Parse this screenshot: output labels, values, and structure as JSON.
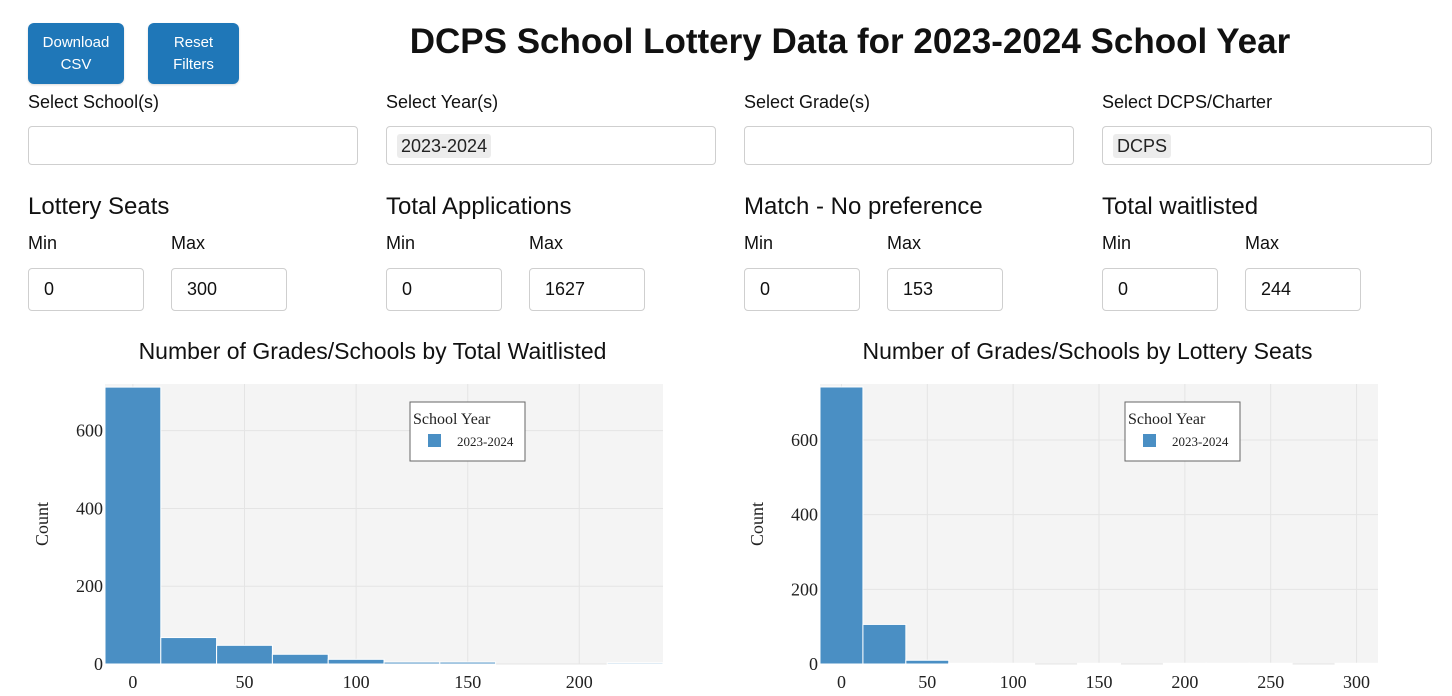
{
  "buttons": {
    "download": "Download\nCSV",
    "reset": "Reset\nFilters"
  },
  "title": "DCPS School Lottery Data for 2023-2024 School Year",
  "filters": [
    {
      "label": "Select School(s)",
      "selected": ""
    },
    {
      "label": "Select Year(s)",
      "selected": "2023-2024"
    },
    {
      "label": "Select Grade(s)",
      "selected": ""
    },
    {
      "label": "Select DCPS/Charter",
      "selected": "DCPS"
    }
  ],
  "ranges": [
    {
      "label": "Lottery Seats",
      "min_label": "Min",
      "max_label": "Max",
      "min": "0",
      "max": "300"
    },
    {
      "label": "Total Applications",
      "min_label": "Min",
      "max_label": "Max",
      "min": "0",
      "max": "1627"
    },
    {
      "label": "Match - No preference",
      "min_label": "Min",
      "max_label": "Max",
      "min": "0",
      "max": "153"
    },
    {
      "label": "Total waitlisted",
      "min_label": "Min",
      "max_label": "Max",
      "min": "0",
      "max": "244"
    }
  ],
  "colors": {
    "bar": "#4a8fc4",
    "plot_bg": "#f4f4f4",
    "grid": "#e4e4e4",
    "button": "#1f77b8"
  },
  "chart_data": [
    {
      "type": "bar",
      "title": "Number of Grades/Schools by Total Waitlisted",
      "xlabel": "",
      "ylabel": "Count",
      "xlim": [
        -12.5,
        237.5
      ],
      "ylim": [
        0,
        720
      ],
      "xticks": [
        0,
        50,
        100,
        150,
        200
      ],
      "yticks": [
        0,
        200,
        400,
        600
      ],
      "legend": {
        "title": "School Year",
        "entries": [
          "2023-2024"
        ],
        "placement": "top-right"
      },
      "bins": [
        {
          "x0": -12.5,
          "x1": 12.5,
          "count": 712
        },
        {
          "x0": 12.5,
          "x1": 37.5,
          "count": 68
        },
        {
          "x0": 37.5,
          "x1": 62.5,
          "count": 48
        },
        {
          "x0": 62.5,
          "x1": 87.5,
          "count": 25
        },
        {
          "x0": 87.5,
          "x1": 112.5,
          "count": 12
        },
        {
          "x0": 112.5,
          "x1": 137.5,
          "count": 5
        },
        {
          "x0": 137.5,
          "x1": 162.5,
          "count": 5
        },
        {
          "x0": 162.5,
          "x1": 187.5,
          "count": 0
        },
        {
          "x0": 187.5,
          "x1": 212.5,
          "count": 0
        },
        {
          "x0": 212.5,
          "x1": 237.5,
          "count": 3
        }
      ]
    },
    {
      "type": "bar",
      "title": "Number of Grades/Schools by Lottery Seats",
      "xlabel": "",
      "ylabel": "Count",
      "xlim": [
        -12.5,
        312.5
      ],
      "ylim": [
        0,
        750
      ],
      "xticks": [
        0,
        50,
        100,
        150,
        200,
        250,
        300
      ],
      "yticks": [
        0,
        200,
        400,
        600
      ],
      "legend": {
        "title": "School Year",
        "entries": [
          "2023-2024"
        ],
        "placement": "top-right"
      },
      "bins": [
        {
          "x0": -12.5,
          "x1": 12.5,
          "count": 742
        },
        {
          "x0": 12.5,
          "x1": 37.5,
          "count": 106
        },
        {
          "x0": 37.5,
          "x1": 62.5,
          "count": 10
        },
        {
          "x0": 62.5,
          "x1": 87.5,
          "count": 2
        },
        {
          "x0": 87.5,
          "x1": 112.5,
          "count": 2
        },
        {
          "x0": 112.5,
          "x1": 137.5,
          "count": 0
        },
        {
          "x0": 137.5,
          "x1": 162.5,
          "count": 2
        },
        {
          "x0": 162.5,
          "x1": 187.5,
          "count": 0
        },
        {
          "x0": 187.5,
          "x1": 212.5,
          "count": 2
        },
        {
          "x0": 212.5,
          "x1": 237.5,
          "count": 2
        },
        {
          "x0": 237.5,
          "x1": 262.5,
          "count": 2
        },
        {
          "x0": 262.5,
          "x1": 287.5,
          "count": 0
        },
        {
          "x0": 287.5,
          "x1": 312.5,
          "count": 2
        }
      ]
    }
  ]
}
